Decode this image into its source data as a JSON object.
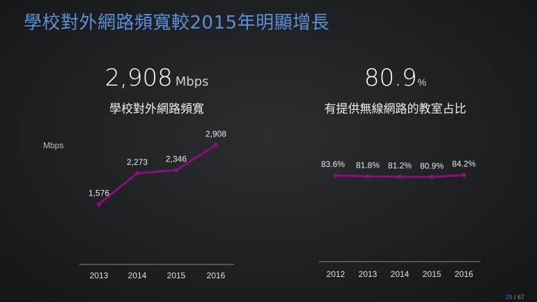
{
  "title": "學校對外網路頻寬較2015年明顯增長",
  "kpis": {
    "bandwidth": {
      "value": "2,908",
      "unit": "Mbps",
      "label": "學校對外網路頻寬"
    },
    "wireless": {
      "value": "80.9",
      "unit": "%",
      "label": "有提供無線網路的教室占比"
    }
  },
  "colors": {
    "line": "#8b0f7a",
    "title": "#5b8fd6",
    "page_current": "#3a78c2"
  },
  "chart_data": [
    {
      "type": "line",
      "unit_label": "Mbps",
      "x": [
        "2013",
        "2014",
        "2015",
        "2016"
      ],
      "values": [
        1576,
        2273,
        2346,
        2908
      ],
      "data_labels": [
        "1,576",
        "2,273",
        "2,346",
        "2,908"
      ],
      "ylim": [
        1000,
        3200
      ],
      "grid": false
    },
    {
      "type": "line",
      "x": [
        "2012",
        "2013",
        "2014",
        "2015",
        "2016"
      ],
      "values": [
        83.6,
        81.8,
        81.2,
        80.9,
        84.2
      ],
      "data_labels": [
        "83.6%",
        "81.8%",
        "81.2%",
        "80.9%",
        "84.2%"
      ],
      "ylim": [
        0,
        160
      ],
      "grid": false
    }
  ],
  "page": {
    "current": "29",
    "separator": " / ",
    "total": "67"
  }
}
